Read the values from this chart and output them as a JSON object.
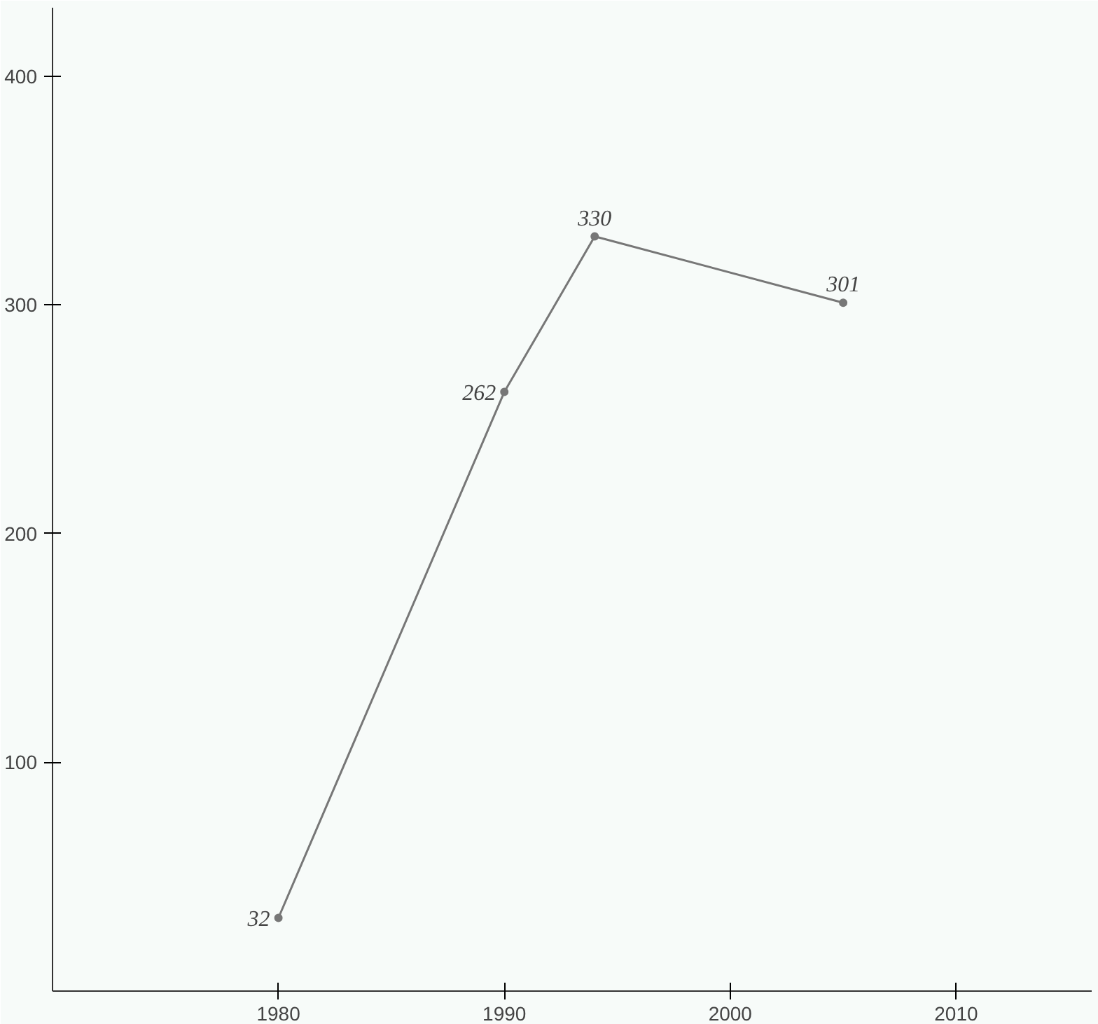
{
  "chart_data": {
    "type": "line",
    "x": [
      1980,
      1990,
      1994,
      2005
    ],
    "series": [
      {
        "color": "#777777",
        "values": [
          32,
          262,
          330,
          301
        ]
      }
    ],
    "xlim": [
      1970,
      2016
    ],
    "ylim": [
      0,
      430
    ],
    "xticks": [
      1980,
      1990,
      2000,
      2010
    ],
    "yticks": [
      100,
      200,
      300,
      400
    ],
    "data_labels": true,
    "grid": false,
    "marker": "circle",
    "line_style": "solid"
  }
}
